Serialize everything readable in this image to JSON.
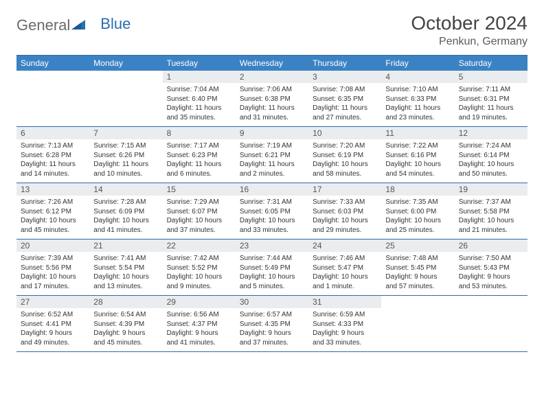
{
  "logo": {
    "word1": "General",
    "word2": "Blue",
    "text_color": "#6a6a6a",
    "accent_color": "#2a6db0"
  },
  "title": "October 2024",
  "location": "Penkun, Germany",
  "theme": {
    "header_bg": "#3b82c4",
    "header_text": "#ffffff",
    "rule_color": "#2e6aa8",
    "daynum_bg": "#e9edf0",
    "body_text": "#333333",
    "title_color": "#444444",
    "location_color": "#5a5a5a"
  },
  "days_of_week": [
    "Sunday",
    "Monday",
    "Tuesday",
    "Wednesday",
    "Thursday",
    "Friday",
    "Saturday"
  ],
  "weeks": [
    [
      {
        "n": "",
        "sunrise": "",
        "sunset": "",
        "daylight": ""
      },
      {
        "n": "",
        "sunrise": "",
        "sunset": "",
        "daylight": ""
      },
      {
        "n": "1",
        "sunrise": "Sunrise: 7:04 AM",
        "sunset": "Sunset: 6:40 PM",
        "daylight": "Daylight: 11 hours and 35 minutes."
      },
      {
        "n": "2",
        "sunrise": "Sunrise: 7:06 AM",
        "sunset": "Sunset: 6:38 PM",
        "daylight": "Daylight: 11 hours and 31 minutes."
      },
      {
        "n": "3",
        "sunrise": "Sunrise: 7:08 AM",
        "sunset": "Sunset: 6:35 PM",
        "daylight": "Daylight: 11 hours and 27 minutes."
      },
      {
        "n": "4",
        "sunrise": "Sunrise: 7:10 AM",
        "sunset": "Sunset: 6:33 PM",
        "daylight": "Daylight: 11 hours and 23 minutes."
      },
      {
        "n": "5",
        "sunrise": "Sunrise: 7:11 AM",
        "sunset": "Sunset: 6:31 PM",
        "daylight": "Daylight: 11 hours and 19 minutes."
      }
    ],
    [
      {
        "n": "6",
        "sunrise": "Sunrise: 7:13 AM",
        "sunset": "Sunset: 6:28 PM",
        "daylight": "Daylight: 11 hours and 14 minutes."
      },
      {
        "n": "7",
        "sunrise": "Sunrise: 7:15 AM",
        "sunset": "Sunset: 6:26 PM",
        "daylight": "Daylight: 11 hours and 10 minutes."
      },
      {
        "n": "8",
        "sunrise": "Sunrise: 7:17 AM",
        "sunset": "Sunset: 6:23 PM",
        "daylight": "Daylight: 11 hours and 6 minutes."
      },
      {
        "n": "9",
        "sunrise": "Sunrise: 7:19 AM",
        "sunset": "Sunset: 6:21 PM",
        "daylight": "Daylight: 11 hours and 2 minutes."
      },
      {
        "n": "10",
        "sunrise": "Sunrise: 7:20 AM",
        "sunset": "Sunset: 6:19 PM",
        "daylight": "Daylight: 10 hours and 58 minutes."
      },
      {
        "n": "11",
        "sunrise": "Sunrise: 7:22 AM",
        "sunset": "Sunset: 6:16 PM",
        "daylight": "Daylight: 10 hours and 54 minutes."
      },
      {
        "n": "12",
        "sunrise": "Sunrise: 7:24 AM",
        "sunset": "Sunset: 6:14 PM",
        "daylight": "Daylight: 10 hours and 50 minutes."
      }
    ],
    [
      {
        "n": "13",
        "sunrise": "Sunrise: 7:26 AM",
        "sunset": "Sunset: 6:12 PM",
        "daylight": "Daylight: 10 hours and 45 minutes."
      },
      {
        "n": "14",
        "sunrise": "Sunrise: 7:28 AM",
        "sunset": "Sunset: 6:09 PM",
        "daylight": "Daylight: 10 hours and 41 minutes."
      },
      {
        "n": "15",
        "sunrise": "Sunrise: 7:29 AM",
        "sunset": "Sunset: 6:07 PM",
        "daylight": "Daylight: 10 hours and 37 minutes."
      },
      {
        "n": "16",
        "sunrise": "Sunrise: 7:31 AM",
        "sunset": "Sunset: 6:05 PM",
        "daylight": "Daylight: 10 hours and 33 minutes."
      },
      {
        "n": "17",
        "sunrise": "Sunrise: 7:33 AM",
        "sunset": "Sunset: 6:03 PM",
        "daylight": "Daylight: 10 hours and 29 minutes."
      },
      {
        "n": "18",
        "sunrise": "Sunrise: 7:35 AM",
        "sunset": "Sunset: 6:00 PM",
        "daylight": "Daylight: 10 hours and 25 minutes."
      },
      {
        "n": "19",
        "sunrise": "Sunrise: 7:37 AM",
        "sunset": "Sunset: 5:58 PM",
        "daylight": "Daylight: 10 hours and 21 minutes."
      }
    ],
    [
      {
        "n": "20",
        "sunrise": "Sunrise: 7:39 AM",
        "sunset": "Sunset: 5:56 PM",
        "daylight": "Daylight: 10 hours and 17 minutes."
      },
      {
        "n": "21",
        "sunrise": "Sunrise: 7:41 AM",
        "sunset": "Sunset: 5:54 PM",
        "daylight": "Daylight: 10 hours and 13 minutes."
      },
      {
        "n": "22",
        "sunrise": "Sunrise: 7:42 AM",
        "sunset": "Sunset: 5:52 PM",
        "daylight": "Daylight: 10 hours and 9 minutes."
      },
      {
        "n": "23",
        "sunrise": "Sunrise: 7:44 AM",
        "sunset": "Sunset: 5:49 PM",
        "daylight": "Daylight: 10 hours and 5 minutes."
      },
      {
        "n": "24",
        "sunrise": "Sunrise: 7:46 AM",
        "sunset": "Sunset: 5:47 PM",
        "daylight": "Daylight: 10 hours and 1 minute."
      },
      {
        "n": "25",
        "sunrise": "Sunrise: 7:48 AM",
        "sunset": "Sunset: 5:45 PM",
        "daylight": "Daylight: 9 hours and 57 minutes."
      },
      {
        "n": "26",
        "sunrise": "Sunrise: 7:50 AM",
        "sunset": "Sunset: 5:43 PM",
        "daylight": "Daylight: 9 hours and 53 minutes."
      }
    ],
    [
      {
        "n": "27",
        "sunrise": "Sunrise: 6:52 AM",
        "sunset": "Sunset: 4:41 PM",
        "daylight": "Daylight: 9 hours and 49 minutes."
      },
      {
        "n": "28",
        "sunrise": "Sunrise: 6:54 AM",
        "sunset": "Sunset: 4:39 PM",
        "daylight": "Daylight: 9 hours and 45 minutes."
      },
      {
        "n": "29",
        "sunrise": "Sunrise: 6:56 AM",
        "sunset": "Sunset: 4:37 PM",
        "daylight": "Daylight: 9 hours and 41 minutes."
      },
      {
        "n": "30",
        "sunrise": "Sunrise: 6:57 AM",
        "sunset": "Sunset: 4:35 PM",
        "daylight": "Daylight: 9 hours and 37 minutes."
      },
      {
        "n": "31",
        "sunrise": "Sunrise: 6:59 AM",
        "sunset": "Sunset: 4:33 PM",
        "daylight": "Daylight: 9 hours and 33 minutes."
      },
      {
        "n": "",
        "sunrise": "",
        "sunset": "",
        "daylight": ""
      },
      {
        "n": "",
        "sunrise": "",
        "sunset": "",
        "daylight": ""
      }
    ]
  ]
}
